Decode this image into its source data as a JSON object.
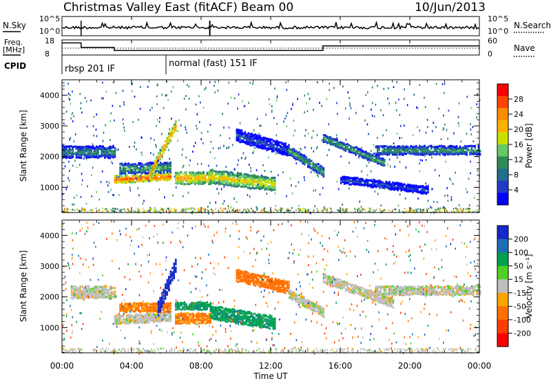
{
  "title": "Christmas Valley East (fitACF)",
  "beam_label": "Beam 00",
  "date": "10/Jun/2013",
  "top_panels": {
    "nsky_label": "N.Sky",
    "nsky_ticks": [
      "10^5",
      "10^0"
    ],
    "nsearch_label": "N.Search",
    "nsearch_ticks": [
      "10^5",
      "10^0"
    ],
    "freq_label_line1": "Freq.",
    "freq_label_line2": "[MHz]",
    "freq_ticks": [
      "18",
      "8"
    ],
    "nave_label": "Nave",
    "nave_ticks": [
      "60",
      "0"
    ],
    "cpid_label": "CPID",
    "cpid_modes": [
      {
        "label": "rbsp 201 IF",
        "start_hour": 0
      },
      {
        "label": "normal (fast) 151 IF",
        "start_hour": 6
      }
    ]
  },
  "x_axis": {
    "label": "Time UT",
    "ticks": [
      "00:00",
      "04:00",
      "08:00",
      "12:00",
      "16:00",
      "20:00",
      "00:00"
    ]
  },
  "power_colorbar": {
    "label": "Power [dB]",
    "ticks": [
      "28",
      "24",
      "20",
      "16",
      "12",
      "8",
      "4"
    ],
    "colors": [
      "#ff0000",
      "#ff4400",
      "#ff8c00",
      "#ffb000",
      "#c8e000",
      "#64c864",
      "#2e8b57",
      "#1e6e8c",
      "#1e3cc8",
      "#0000ff"
    ]
  },
  "velocity_colorbar": {
    "label": "Velocity [m s⁻¹]",
    "ticks": [
      "200",
      "100",
      "50",
      "15",
      "-15",
      "-50",
      "-100",
      "-200"
    ],
    "colors": [
      "#1428c8",
      "#1e6eb4",
      "#00a050",
      "#50d020",
      "#bebebe",
      "#ffa500",
      "#ff7000",
      "#ff3c00",
      "#ff0000"
    ]
  },
  "chart_data": [
    {
      "type": "line",
      "panel": "N.Sky / N.Search",
      "x_range_hours": [
        0,
        24
      ],
      "y_scale": "log",
      "ylim": [
        1,
        100000
      ]
    },
    {
      "type": "line",
      "panel": "Freq. / Nave",
      "x_range_hours": [
        0,
        24
      ],
      "series": [
        {
          "name": "Freq.",
          "x_hours": [
            0,
            1.1,
            1.1,
            3.0,
            3.0,
            8.5,
            8.5,
            15.0,
            15.0,
            24
          ],
          "values": [
            16,
            16,
            13,
            13,
            11,
            11,
            11,
            11,
            14,
            14
          ]
        }
      ],
      "ylim_freq": [
        8,
        18
      ],
      "ylim_nave": [
        0,
        60
      ]
    },
    {
      "type": "heatmap",
      "panel": "Power",
      "x_label": "Time UT",
      "y_label": "Slant Range [km]",
      "y_ticks": [
        1000,
        2000,
        3000,
        4000
      ],
      "ylim": [
        180,
        4500
      ],
      "x_range_hours": [
        0,
        24
      ],
      "bands": [
        {
          "t0": 0.0,
          "t1": 3.0,
          "r_start": 2150,
          "r_end": 2150,
          "width": 400,
          "power": 12
        },
        {
          "t0": 3.0,
          "t1": 6.2,
          "r_start": 1250,
          "r_end": 1350,
          "width": 250,
          "power": 26
        },
        {
          "t0": 3.3,
          "t1": 6.2,
          "r_start": 1600,
          "r_end": 1650,
          "width": 350,
          "power": 14
        },
        {
          "t0": 5.0,
          "t1": 6.5,
          "r_start": 1400,
          "r_end": 3000,
          "width": 350,
          "power": 24
        },
        {
          "t0": 6.5,
          "t1": 8.5,
          "r_start": 1300,
          "r_end": 1300,
          "width": 400,
          "power": 22
        },
        {
          "t0": 8.5,
          "t1": 12.2,
          "r_start": 1350,
          "r_end": 1100,
          "width": 450,
          "power": 20
        },
        {
          "t0": 10.0,
          "t1": 13.0,
          "r_start": 2700,
          "r_end": 2200,
          "width": 400,
          "power": 8
        },
        {
          "t0": 13.0,
          "t1": 15.0,
          "r_start": 2200,
          "r_end": 1500,
          "width": 300,
          "power": 14
        },
        {
          "t0": 15.0,
          "t1": 18.5,
          "r_start": 2600,
          "r_end": 1800,
          "width": 250,
          "power": 14
        },
        {
          "t0": 16.0,
          "t1": 21.0,
          "r_start": 1250,
          "r_end": 900,
          "width": 250,
          "power": 8
        },
        {
          "t0": 18.0,
          "t1": 24.0,
          "r_start": 2200,
          "r_end": 2200,
          "width": 300,
          "power": 13
        }
      ]
    },
    {
      "type": "heatmap",
      "panel": "Velocity",
      "x_label": "Time UT",
      "y_label": "Slant Range [km]",
      "y_ticks": [
        1000,
        2000,
        3000,
        4000
      ],
      "ylim": [
        180,
        4500
      ],
      "x_range_hours": [
        0,
        24
      ],
      "bands": [
        {
          "t0": 0.5,
          "t1": 3.0,
          "r_start": 2150,
          "r_end": 2150,
          "width": 400,
          "velocity": 0
        },
        {
          "t0": 3.0,
          "t1": 6.2,
          "r_start": 1250,
          "r_end": 1350,
          "width": 300,
          "velocity": 0
        },
        {
          "t0": 3.3,
          "t1": 6.2,
          "r_start": 1650,
          "r_end": 1650,
          "width": 300,
          "velocity": -60
        },
        {
          "t0": 5.5,
          "t1": 6.5,
          "r_start": 1600,
          "r_end": 3000,
          "width": 500,
          "velocity": 220
        },
        {
          "t0": 6.5,
          "t1": 8.5,
          "r_start": 1300,
          "r_end": 1300,
          "width": 350,
          "velocity": -60
        },
        {
          "t0": 6.5,
          "t1": 8.5,
          "r_start": 1700,
          "r_end": 1700,
          "width": 250,
          "velocity": 60
        },
        {
          "t0": 8.5,
          "t1": 12.2,
          "r_start": 1500,
          "r_end": 1150,
          "width": 450,
          "velocity": 60
        },
        {
          "t0": 10.0,
          "t1": 13.0,
          "r_start": 2700,
          "r_end": 2300,
          "width": 400,
          "velocity": -70
        },
        {
          "t0": 13.0,
          "t1": 15.0,
          "r_start": 2100,
          "r_end": 1500,
          "width": 300,
          "velocity": 0
        },
        {
          "t0": 15.0,
          "t1": 19.0,
          "r_start": 2600,
          "r_end": 1800,
          "width": 300,
          "velocity": 0
        },
        {
          "t0": 18.0,
          "t1": 24.0,
          "r_start": 2200,
          "r_end": 2200,
          "width": 300,
          "velocity": 0
        }
      ]
    }
  ]
}
